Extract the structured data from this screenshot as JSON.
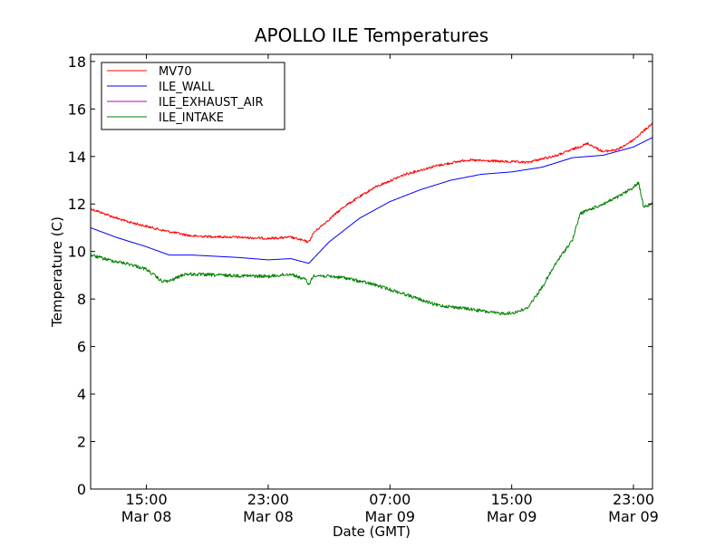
{
  "chart_data": {
    "type": "line",
    "title": "APOLLO ILE Temperatures",
    "xlabel": "Date (GMT)",
    "ylabel": "Temperature (C)",
    "ylim": [
      0,
      18.3
    ],
    "xlim": [
      "2014-03-08T11:20",
      "2014-03-10T00:15"
    ],
    "grid": false,
    "legend_position": "upper-left",
    "y_ticks": [
      "0",
      "2",
      "4",
      "6",
      "8",
      "10",
      "12",
      "14",
      "16",
      "18"
    ],
    "x_ticks": [
      {
        "t": "2014-03-08T15:00",
        "time": "15:00",
        "date": "Mar 08"
      },
      {
        "t": "2014-03-08T23:00",
        "time": "23:00",
        "date": "Mar 08"
      },
      {
        "t": "2014-03-09T07:00",
        "time": "07:00",
        "date": "Mar 09"
      },
      {
        "t": "2014-03-09T15:00",
        "time": "15:00",
        "date": "Mar 09"
      },
      {
        "t": "2014-03-09T23:00",
        "time": "23:00",
        "date": "Mar 09"
      }
    ],
    "series": [
      {
        "name": "MV70",
        "color": "#ff0000",
        "noise": 0.05,
        "x": [
          "2014-03-08T11:20",
          "2014-03-08T13:30",
          "2014-03-08T16:00",
          "2014-03-08T18:00",
          "2014-03-08T21:00",
          "2014-03-08T23:00",
          "2014-03-09T00:30",
          "2014-03-09T01:40",
          "2014-03-09T02:00",
          "2014-03-09T04:00",
          "2014-03-09T06:00",
          "2014-03-09T08:00",
          "2014-03-09T10:00",
          "2014-03-09T12:00",
          "2014-03-09T14:00",
          "2014-03-09T16:00",
          "2014-03-09T18:00",
          "2014-03-09T19:00",
          "2014-03-09T20:00",
          "2014-03-09T21:00",
          "2014-03-09T22:00",
          "2014-03-09T23:00",
          "2014-03-10T00:15"
        ],
        "y": [
          11.8,
          11.3,
          10.9,
          10.65,
          10.6,
          10.55,
          10.6,
          10.4,
          10.8,
          11.9,
          12.7,
          13.25,
          13.6,
          13.85,
          13.8,
          13.75,
          14.05,
          14.3,
          14.55,
          14.2,
          14.3,
          14.7,
          15.4
        ]
      },
      {
        "name": "ILE_WALL",
        "color": "#0000ff",
        "noise": 0.0,
        "x": [
          "2014-03-08T11:20",
          "2014-03-08T13:00",
          "2014-03-08T15:00",
          "2014-03-08T16:30",
          "2014-03-08T18:00",
          "2014-03-08T21:00",
          "2014-03-08T23:00",
          "2014-03-09T00:30",
          "2014-03-09T01:40",
          "2014-03-09T03:00",
          "2014-03-09T05:00",
          "2014-03-09T07:00",
          "2014-03-09T09:00",
          "2014-03-09T11:00",
          "2014-03-09T13:00",
          "2014-03-09T15:00",
          "2014-03-09T17:00",
          "2014-03-09T19:00",
          "2014-03-09T21:00",
          "2014-03-09T23:00",
          "2014-03-10T00:15"
        ],
        "y": [
          11.0,
          10.6,
          10.2,
          9.85,
          9.85,
          9.75,
          9.65,
          9.7,
          9.5,
          10.4,
          11.4,
          12.1,
          12.6,
          13.0,
          13.25,
          13.35,
          13.55,
          13.95,
          14.05,
          14.4,
          14.8
        ]
      },
      {
        "name": "ILE_EXHAUST_AIR",
        "color": "#bf00bf",
        "noise": 0.0,
        "x": [],
        "y": []
      },
      {
        "name": "ILE_INTAKE",
        "color": "#008000",
        "noise": 0.07,
        "x": [
          "2014-03-08T11:20",
          "2014-03-08T12:30",
          "2014-03-08T14:00",
          "2014-03-08T15:00",
          "2014-03-08T16:00",
          "2014-03-08T16:30",
          "2014-03-08T17:30",
          "2014-03-08T20:00",
          "2014-03-08T23:00",
          "2014-03-09T00:30",
          "2014-03-09T01:30",
          "2014-03-09T01:40",
          "2014-03-09T02:00",
          "2014-03-09T04:00",
          "2014-03-09T06:00",
          "2014-03-09T08:00",
          "2014-03-09T10:00",
          "2014-03-09T12:00",
          "2014-03-09T14:00",
          "2014-03-09T15:00",
          "2014-03-09T16:00",
          "2014-03-09T17:00",
          "2014-03-09T18:00",
          "2014-03-09T19:00",
          "2014-03-09T19:30",
          "2014-03-09T21:00",
          "2014-03-09T22:00",
          "2014-03-09T23:00",
          "2014-03-09T23:20",
          "2014-03-09T23:40",
          "2014-03-10T00:15"
        ],
        "y": [
          9.85,
          9.65,
          9.45,
          9.25,
          8.75,
          8.75,
          9.05,
          9.0,
          8.95,
          9.05,
          8.8,
          8.6,
          9.0,
          8.9,
          8.6,
          8.2,
          7.75,
          7.6,
          7.4,
          7.4,
          7.6,
          8.5,
          9.6,
          10.5,
          11.6,
          12.0,
          12.3,
          12.7,
          12.9,
          11.9,
          12.0
        ]
      }
    ]
  }
}
